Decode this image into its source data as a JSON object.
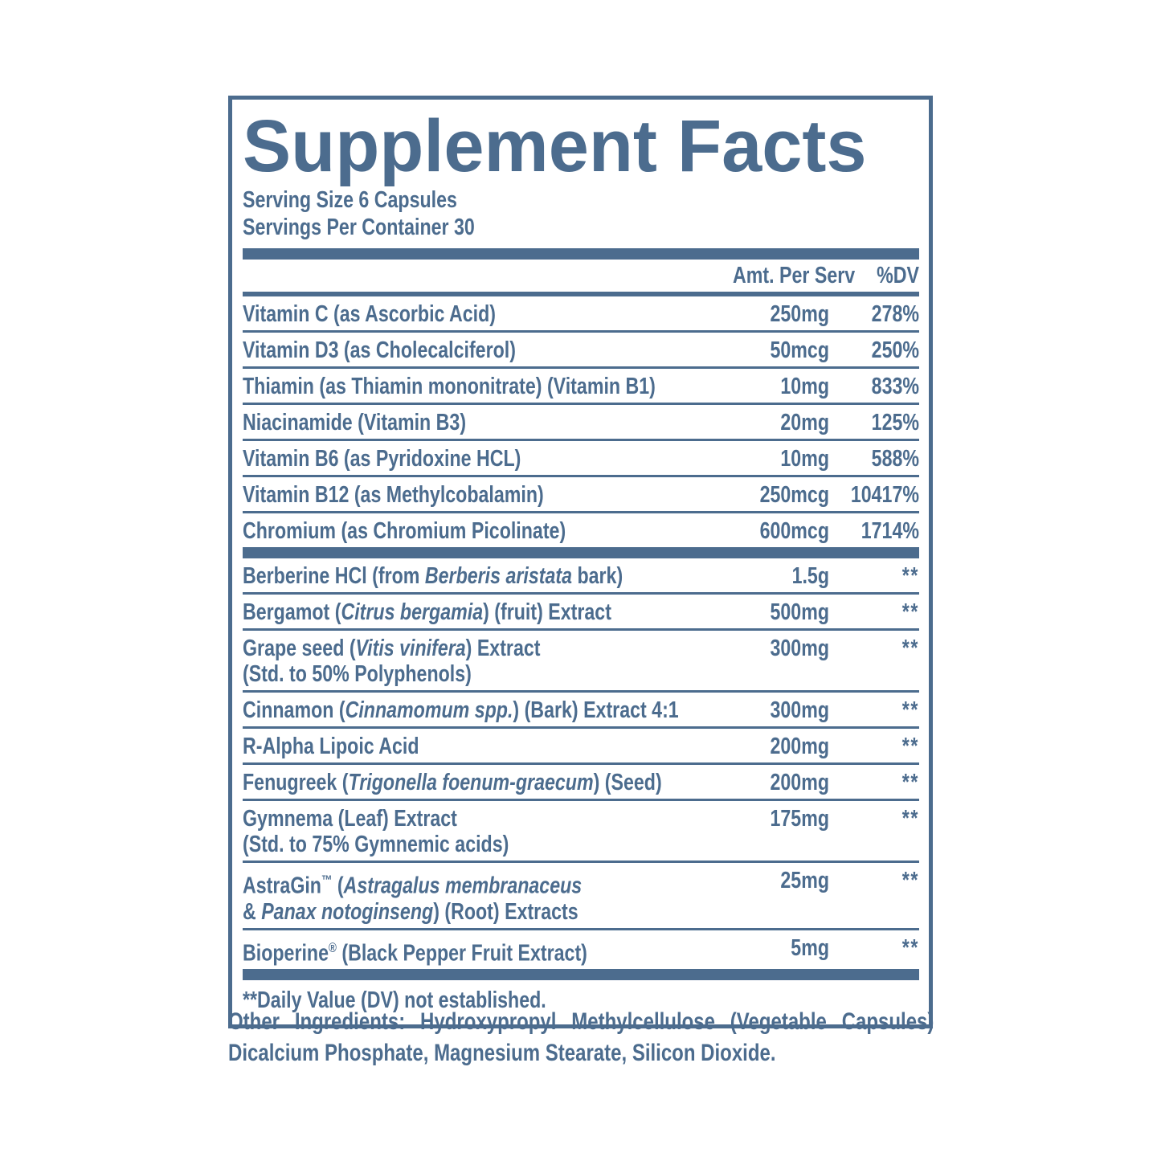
{
  "colors": {
    "ink": "#4c6c8e"
  },
  "header": {
    "title": "Supplement Facts",
    "serving_size": "Serving Size 6 Capsules",
    "servings_per_container": "Servings Per Container 30",
    "amount_col": "Amt. Per Serv",
    "dv_col": "%DV"
  },
  "sections": [
    {
      "name": "vitamins-minerals",
      "rows": [
        {
          "name": [
            {
              "t": "Vitamin C (as Ascorbic Acid)"
            }
          ],
          "amount": "250mg",
          "dv": "278%"
        },
        {
          "name": [
            {
              "t": "Vitamin D3 (as Cholecalciferol)"
            }
          ],
          "amount": "50mcg",
          "dv": "250%"
        },
        {
          "name": [
            {
              "t": "Thiamin (as Thiamin mononitrate) (Vitamin B1)"
            }
          ],
          "amount": "10mg",
          "dv": "833%"
        },
        {
          "name": [
            {
              "t": "Niacinamide (Vitamin B3)"
            }
          ],
          "amount": "20mg",
          "dv": "125%"
        },
        {
          "name": [
            {
              "t": "Vitamin B6 (as Pyridoxine HCL)"
            }
          ],
          "amount": "10mg",
          "dv": "588%"
        },
        {
          "name": [
            {
              "t": "Vitamin B12 (as Methylcobalamin)"
            }
          ],
          "amount": "250mcg",
          "dv": "10417%"
        },
        {
          "name": [
            {
              "t": "Chromium (as Chromium Picolinate)"
            }
          ],
          "amount": "600mcg",
          "dv": "1714%"
        }
      ]
    },
    {
      "name": "botanicals",
      "rows": [
        {
          "name": [
            {
              "t": "Berberine HCl (from "
            },
            {
              "t": "Berberis aristata",
              "i": true
            },
            {
              "t": " bark)"
            }
          ],
          "amount": "1.5g",
          "dv": "**",
          "dv_est": true
        },
        {
          "name": [
            {
              "t": "Bergamot ("
            },
            {
              "t": "Citrus bergamia",
              "i": true
            },
            {
              "t": ") (fruit) Extract"
            }
          ],
          "amount": "500mg",
          "dv": "**",
          "dv_est": true
        },
        {
          "name": [
            {
              "t": "Grape seed ("
            },
            {
              "t": "Vitis vinifera",
              "i": true
            },
            {
              "t": ") Extract"
            }
          ],
          "name2": [
            {
              "t": "(Std. to 50% Polyphenols)"
            }
          ],
          "amount": "300mg",
          "dv": "**",
          "dv_est": true
        },
        {
          "name": [
            {
              "t": "Cinnamon ("
            },
            {
              "t": "Cinnamomum spp.",
              "i": true
            },
            {
              "t": ") (Bark) Extract 4:1"
            }
          ],
          "amount": "300mg",
          "dv": "**",
          "dv_est": true
        },
        {
          "name": [
            {
              "t": "R-Alpha Lipoic Acid"
            }
          ],
          "amount": "200mg",
          "dv": "**",
          "dv_est": true
        },
        {
          "name": [
            {
              "t": "Fenugreek ("
            },
            {
              "t": "Trigonella foenum-graecum",
              "i": true
            },
            {
              "t": ") (Seed)"
            }
          ],
          "amount": "200mg",
          "dv": "**",
          "dv_est": true
        },
        {
          "name": [
            {
              "t": "Gymnema (Leaf) Extract"
            }
          ],
          "name2": [
            {
              "t": "(Std. to 75% Gymnemic acids)"
            }
          ],
          "amount": "175mg",
          "dv": "**",
          "dv_est": true
        },
        {
          "name": [
            {
              "t": "AstraGin"
            },
            {
              "t": "™",
              "sup": true
            },
            {
              "t": " ("
            },
            {
              "t": "Astragalus membranaceus",
              "i": true
            }
          ],
          "name2": [
            {
              "t": "& "
            },
            {
              "t": "Panax notoginseng",
              "i": true
            },
            {
              "t": ") (Root) Extracts"
            }
          ],
          "amount": "25mg",
          "dv": "**",
          "dv_est": true
        },
        {
          "name": [
            {
              "t": "Bioperine"
            },
            {
              "t": "®",
              "sup": true
            },
            {
              "t": " (Black Pepper Fruit Extract)"
            }
          ],
          "amount": "5mg",
          "dv": "**",
          "dv_est": true
        }
      ]
    }
  ],
  "footnote": "**Daily Value (DV) not established.",
  "other_ingredients": {
    "line1": "Other Ingredients: Hydroxypropyl Methylcellulose (Vegetable Capsules)",
    "line2": "Dicalcium Phosphate, Magnesium Stearate, Silicon Dioxide."
  }
}
